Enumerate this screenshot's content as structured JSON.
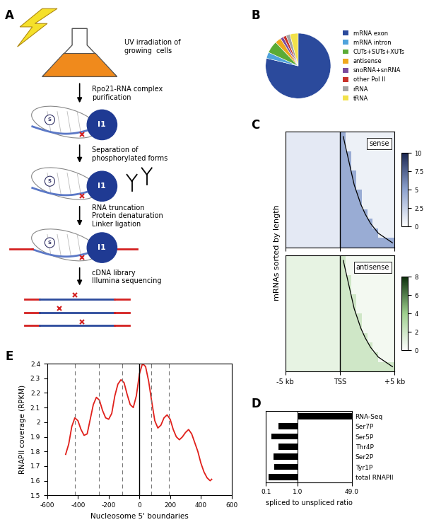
{
  "diagram": {
    "label": "A",
    "steps": [
      {
        "lines": [
          "UV irradiation of",
          "growing  cells"
        ]
      },
      {
        "lines": [
          "Rpo21-RNA complex",
          "purification"
        ]
      },
      {
        "lines": [
          "Separation of",
          "phosphorylated forms"
        ]
      },
      {
        "lines": [
          "RNA truncation",
          "Protein denaturation",
          "Linker ligation"
        ]
      },
      {
        "lines": [
          "cDNA library",
          "Illumina sequencing"
        ]
      }
    ],
    "icon_labels": {
      "subunit": "S",
      "polymerase": "I1"
    }
  },
  "chart_data": [
    {
      "type": "pie",
      "label": "B",
      "categories": [
        "mRNA exon",
        "mRNA intron",
        "CUTs+SUTs+XUTs",
        "antisense",
        "snoRNA+snRNA",
        "other Pol II",
        "rRNA",
        "tRNA"
      ],
      "values": [
        78,
        3,
        6,
        3,
        1.5,
        1.5,
        2,
        4
      ],
      "colors": [
        "#2b4a9c",
        "#4fa3dc",
        "#5bab35",
        "#f0a81e",
        "#7a4b9e",
        "#c8322a",
        "#a3a3a3",
        "#f2e24a"
      ],
      "legend": "center left"
    },
    {
      "type": "heatmap",
      "label": "C",
      "ylabel": "mRNAs sorted by length",
      "xlim": [
        -5,
        5
      ],
      "xticks": [
        {
          "value": -5,
          "label": "-5 kb"
        },
        {
          "value": 0,
          "label": "TSS"
        },
        {
          "value": 5,
          "label": "+5 kb"
        }
      ],
      "tss": 0,
      "gene_end": [
        0.3,
        0.5,
        0.7,
        0.9,
        1.1,
        1.3,
        1.6,
        1.9,
        2.3,
        2.8,
        3.5,
        4.8
      ],
      "maps": [
        {
          "name": "sense",
          "colors": [
            "#ffffff",
            "#8ea3cf",
            "#1a2650"
          ],
          "colorbar_range": [
            0,
            10
          ],
          "colorbar_ticks": [
            0,
            2.5,
            5,
            7.5,
            10
          ],
          "cells": [
            [
              1.2,
              1.2,
              1.2,
              1.2,
              1.2,
              1.2,
              1.2,
              1.2,
              1.2,
              1.2,
              4.5,
              0.8,
              0.8,
              0.8,
              0.8,
              0.8,
              0.8,
              0.8,
              0.8,
              0.8
            ],
            [
              1.2,
              1.2,
              1.2,
              1.2,
              1.2,
              1.2,
              1.2,
              1.2,
              1.2,
              1.2,
              4.5,
              0.8,
              0.8,
              0.8,
              0.8,
              0.8,
              0.8,
              0.8,
              0.8,
              0.8
            ],
            [
              1.2,
              1.2,
              1.2,
              1.2,
              1.2,
              1.2,
              1.2,
              1.2,
              1.2,
              1.2,
              4.5,
              4.5,
              0.8,
              0.8,
              0.8,
              0.8,
              0.8,
              0.8,
              0.8,
              0.8
            ],
            [
              1.2,
              1.2,
              1.2,
              1.2,
              1.2,
              1.2,
              1.2,
              1.2,
              1.2,
              1.2,
              4.5,
              4.5,
              0.8,
              0.8,
              0.8,
              0.8,
              0.8,
              0.8,
              0.8,
              0.8
            ],
            [
              1.2,
              1.2,
              1.2,
              1.2,
              1.2,
              1.2,
              1.2,
              1.2,
              1.2,
              1.2,
              4.5,
              4.5,
              4.5,
              0.8,
              0.8,
              0.8,
              0.8,
              0.8,
              0.8,
              0.8
            ],
            [
              1.2,
              1.2,
              1.2,
              1.2,
              1.2,
              1.2,
              1.2,
              1.2,
              1.2,
              1.2,
              4.5,
              4.5,
              4.5,
              0.8,
              0.8,
              0.8,
              0.8,
              0.8,
              0.8,
              0.8
            ],
            [
              1.2,
              1.2,
              1.2,
              1.2,
              1.2,
              1.2,
              1.2,
              1.2,
              1.2,
              1.2,
              4.5,
              4.5,
              4.5,
              4.5,
              0.8,
              0.8,
              0.8,
              0.8,
              0.8,
              0.8
            ],
            [
              1.2,
              1.2,
              1.2,
              1.2,
              1.2,
              1.2,
              1.2,
              1.2,
              1.2,
              1.2,
              4.5,
              4.5,
              4.5,
              4.5,
              0.8,
              0.8,
              0.8,
              0.8,
              0.8,
              0.8
            ],
            [
              1.2,
              1.2,
              1.2,
              1.2,
              1.2,
              1.2,
              1.2,
              1.2,
              1.2,
              1.2,
              4.5,
              4.5,
              4.5,
              4.5,
              4.5,
              0.8,
              0.8,
              0.8,
              0.8,
              0.8
            ],
            [
              1.2,
              1.2,
              1.2,
              1.2,
              1.2,
              1.2,
              1.2,
              1.2,
              1.2,
              1.2,
              4.5,
              4.5,
              4.5,
              4.5,
              4.5,
              4.5,
              0.8,
              0.8,
              0.8,
              0.8
            ],
            [
              1.2,
              1.2,
              1.2,
              1.2,
              1.2,
              1.2,
              1.2,
              1.2,
              1.2,
              1.2,
              4.5,
              4.5,
              4.5,
              4.5,
              4.5,
              4.5,
              4.5,
              0.8,
              0.8,
              0.8
            ],
            [
              1.2,
              1.2,
              1.2,
              1.2,
              1.2,
              1.2,
              1.2,
              1.2,
              1.2,
              1.2,
              4.5,
              4.5,
              4.5,
              4.5,
              4.5,
              4.5,
              4.5,
              4.5,
              4.5,
              4.5
            ]
          ]
        },
        {
          "name": "antisense",
          "colors": [
            "#ffffff",
            "#9fd08f",
            "#0b2e0b"
          ],
          "colorbar_range": [
            0,
            8
          ],
          "colorbar_ticks": [
            0,
            2,
            4,
            6,
            8
          ],
          "cells": [
            [
              1.0,
              1.0,
              1.0,
              1.0,
              1.0,
              1.0,
              1.0,
              1.0,
              1.0,
              1.0,
              2.0,
              0.5,
              0.5,
              0.5,
              0.5,
              0.5,
              0.5,
              0.5,
              0.5,
              0.5
            ],
            [
              1.0,
              1.0,
              1.0,
              1.0,
              1.0,
              1.0,
              1.0,
              1.0,
              1.0,
              1.0,
              2.0,
              0.5,
              0.5,
              0.5,
              0.5,
              0.5,
              0.5,
              0.5,
              0.5,
              0.5
            ],
            [
              1.0,
              1.0,
              1.0,
              1.0,
              1.0,
              1.0,
              1.0,
              1.0,
              1.0,
              1.0,
              2.0,
              2.0,
              0.5,
              0.5,
              0.5,
              0.5,
              0.5,
              0.5,
              0.5,
              0.5
            ],
            [
              1.0,
              1.0,
              1.0,
              1.0,
              1.0,
              1.0,
              1.0,
              1.0,
              1.0,
              1.0,
              2.0,
              2.0,
              0.5,
              0.5,
              0.5,
              0.5,
              0.5,
              0.5,
              0.5,
              0.5
            ],
            [
              1.0,
              1.0,
              1.0,
              1.0,
              1.0,
              1.0,
              1.0,
              1.0,
              1.0,
              1.0,
              2.0,
              2.0,
              2.0,
              0.5,
              0.5,
              0.5,
              0.5,
              0.5,
              0.5,
              0.5
            ],
            [
              1.0,
              1.0,
              1.0,
              1.0,
              1.0,
              1.0,
              1.0,
              1.0,
              1.0,
              1.0,
              2.0,
              2.0,
              2.0,
              0.5,
              0.5,
              0.5,
              0.5,
              0.5,
              0.5,
              0.5
            ],
            [
              1.0,
              1.0,
              1.0,
              1.0,
              1.0,
              1.0,
              1.0,
              1.0,
              1.0,
              1.0,
              2.0,
              2.0,
              2.0,
              2.0,
              0.5,
              0.5,
              0.5,
              0.5,
              0.5,
              0.5
            ],
            [
              1.0,
              1.0,
              1.0,
              1.0,
              1.0,
              1.0,
              1.0,
              1.0,
              1.0,
              1.0,
              2.0,
              2.0,
              2.0,
              2.0,
              0.5,
              0.5,
              0.5,
              0.5,
              0.5,
              0.5
            ],
            [
              1.0,
              1.0,
              1.0,
              1.0,
              1.0,
              1.0,
              1.0,
              1.0,
              1.0,
              1.0,
              2.0,
              2.0,
              2.0,
              2.0,
              2.0,
              0.5,
              0.5,
              0.5,
              0.5,
              0.5
            ],
            [
              1.0,
              1.0,
              1.0,
              1.0,
              1.0,
              1.0,
              1.0,
              1.0,
              1.0,
              1.0,
              2.0,
              2.0,
              2.0,
              2.0,
              2.0,
              2.0,
              0.5,
              0.5,
              0.5,
              0.5
            ],
            [
              1.0,
              1.0,
              1.0,
              1.0,
              1.0,
              1.0,
              1.0,
              1.0,
              1.0,
              1.0,
              2.0,
              2.0,
              2.0,
              2.0,
              2.0,
              2.0,
              2.0,
              0.5,
              0.5,
              0.5
            ],
            [
              1.0,
              1.0,
              1.0,
              1.0,
              1.0,
              1.0,
              1.0,
              1.0,
              1.0,
              1.0,
              2.0,
              2.0,
              2.0,
              2.0,
              2.0,
              2.0,
              2.0,
              2.0,
              2.0,
              2.0
            ]
          ]
        }
      ],
      "tick_labels": "x"
    },
    {
      "type": "bar",
      "label": "D",
      "orientation": "horizontal",
      "log": "x",
      "categories": [
        "RNA-Seq",
        "Ser7P",
        "Ser5P",
        "Thr4P",
        "Ser2P",
        "Tyr1P",
        "total RNAPII"
      ],
      "values": [
        49,
        0.25,
        0.15,
        0.25,
        0.17,
        0.18,
        0.12
      ],
      "baseline": 1,
      "color": "#000000",
      "xlabel": "spliced to unspliced ratio",
      "xlim": [
        0.1,
        49
      ],
      "xticks": [
        0.1,
        {
          "value": 1,
          "label": "1.0"
        },
        {
          "value": 49,
          "label": "49.0"
        }
      ]
    },
    {
      "type": "line",
      "label": "E",
      "color": "#e0201b",
      "xlabel": "Nucleosome 5' boundaries",
      "ylabel": "RNAPII coverage (RPKM)",
      "x": [
        -480,
        -460,
        -440,
        -420,
        -400,
        -380,
        -360,
        -340,
        -320,
        -300,
        -280,
        -260,
        -240,
        -220,
        -200,
        -180,
        -160,
        -140,
        -120,
        -100,
        -80,
        -60,
        -40,
        -20,
        0,
        20,
        40,
        60,
        80,
        100,
        120,
        140,
        160,
        180,
        200,
        220,
        240,
        260,
        280,
        300,
        320,
        340,
        360,
        380,
        400,
        420,
        440,
        460,
        470
      ],
      "values": [
        1.78,
        1.85,
        1.97,
        2.03,
        2.01,
        1.95,
        1.91,
        1.92,
        2.02,
        2.12,
        2.17,
        2.15,
        2.08,
        2.03,
        2.02,
        2.06,
        2.18,
        2.26,
        2.29,
        2.27,
        2.19,
        2.12,
        2.1,
        2.18,
        2.33,
        2.4,
        2.38,
        2.28,
        2.14,
        2.01,
        1.96,
        1.98,
        2.03,
        2.05,
        2.02,
        1.95,
        1.9,
        1.88,
        1.9,
        1.93,
        1.95,
        1.92,
        1.86,
        1.8,
        1.72,
        1.66,
        1.62,
        1.6,
        1.61
      ],
      "dashed_lines": [
        -420,
        -265,
        -110,
        75,
        190
      ],
      "solid_lines": [
        0
      ],
      "xlim": [
        -600,
        600
      ],
      "xticks": [
        -600,
        -400,
        -200,
        0,
        200,
        400,
        600
      ],
      "ylim": [
        1.5,
        2.4
      ],
      "yticks": [
        1.5,
        1.6,
        1.7,
        1.8,
        1.9,
        2,
        2.1,
        2.2,
        2.3,
        2.4
      ],
      "grid": false
    }
  ]
}
